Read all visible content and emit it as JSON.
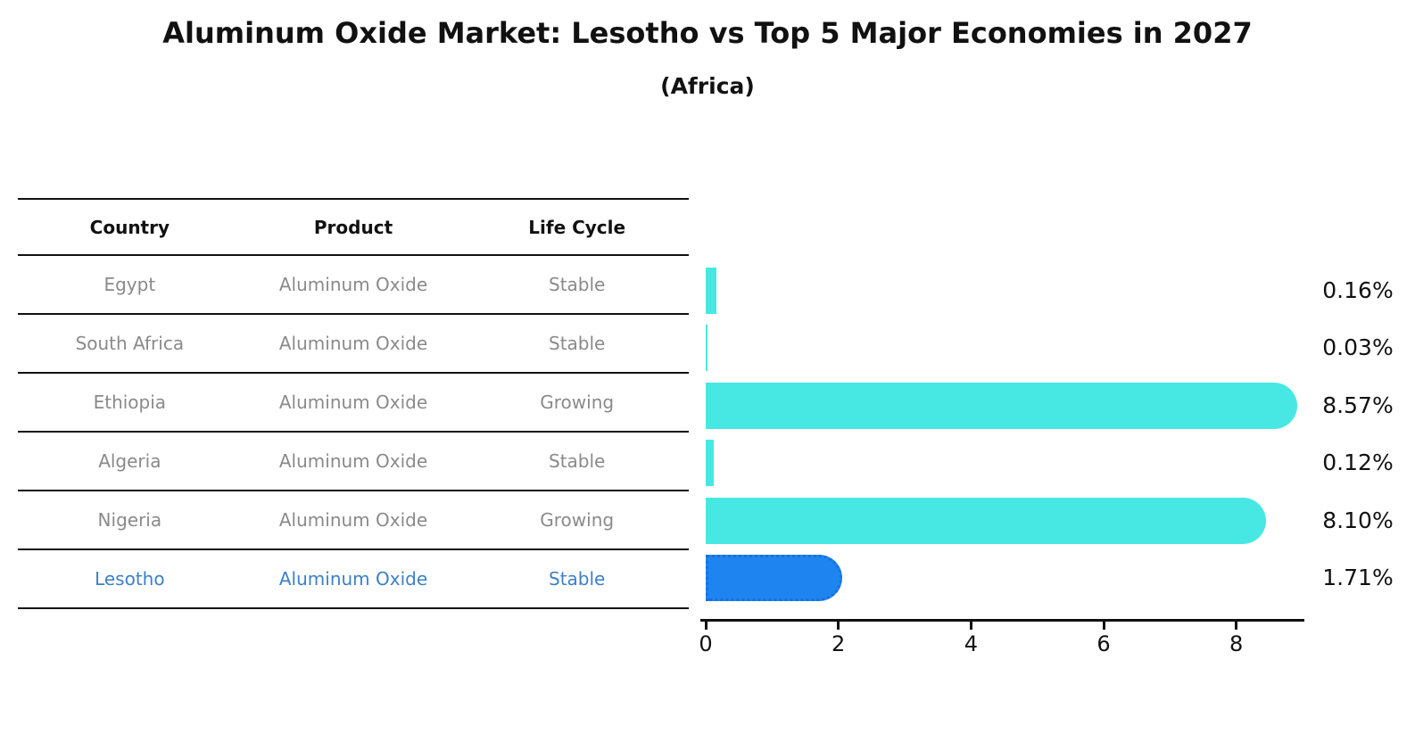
{
  "title": "Aluminum Oxide Market: Lesotho vs Top 5 Major Economies in 2027",
  "subtitle": "(Africa)",
  "table": {
    "headers": [
      "Country",
      "Product",
      "Life Cycle"
    ],
    "rows": [
      {
        "country": "Egypt",
        "product": "Aluminum Oxide",
        "life_cycle": "Stable",
        "highlighted": false
      },
      {
        "country": "South Africa",
        "product": "Aluminum Oxide",
        "life_cycle": "Stable",
        "highlighted": false
      },
      {
        "country": "Ethiopia",
        "product": "Aluminum Oxide",
        "life_cycle": "Growing",
        "highlighted": false
      },
      {
        "country": "Algeria",
        "product": "Aluminum Oxide",
        "life_cycle": "Stable",
        "highlighted": false
      },
      {
        "country": "Nigeria",
        "product": "Aluminum Oxide",
        "life_cycle": "Growing",
        "highlighted": false
      },
      {
        "country": "Lesotho",
        "product": "Aluminum Oxide",
        "life_cycle": "Stable",
        "highlighted": true
      }
    ]
  },
  "chart_data": {
    "type": "bar",
    "orientation": "horizontal",
    "title": "Aluminum Oxide Market: Lesotho vs Top 5 Major Economies in 2027",
    "subtitle": "(Africa)",
    "categories": [
      "Egypt",
      "South Africa",
      "Ethiopia",
      "Algeria",
      "Nigeria",
      "Lesotho"
    ],
    "values": [
      0.16,
      0.03,
      8.57,
      0.12,
      8.1,
      1.71
    ],
    "value_labels": [
      "0.16%",
      "0.03%",
      "8.57%",
      "0.12%",
      "8.10%",
      "1.71%"
    ],
    "xticks": [
      0,
      2,
      4,
      6,
      8
    ],
    "xlim": [
      0,
      9
    ],
    "grid": false,
    "legend": "none",
    "highlight_index": 5
  },
  "colors": {
    "bar_default": "#47E8E3",
    "bar_highlight": "#1E84F0",
    "bar_highlight_border": "#1670E0",
    "row_text": "#8A8A8A",
    "highlight_text": "#3C80C8",
    "axis": "#111111"
  }
}
